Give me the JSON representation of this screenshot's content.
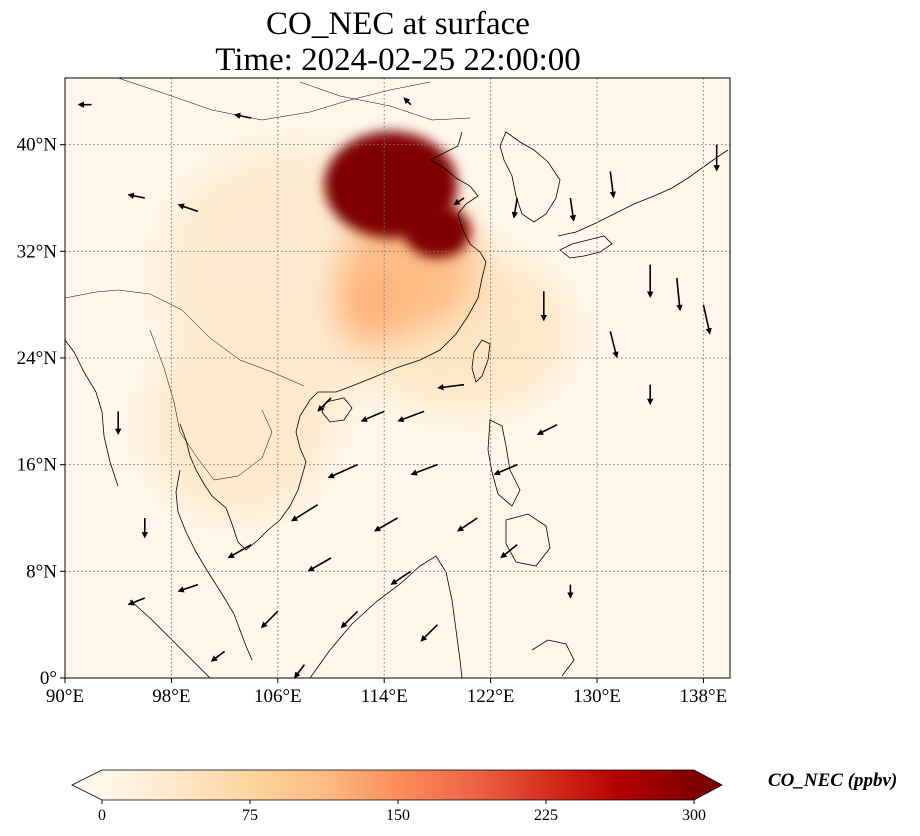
{
  "title": {
    "line1": "CO_NEC at surface",
    "line2": "Time: 2024-02-25 22:00:00"
  },
  "map": {
    "extent": {
      "lon_min": 90,
      "lon_max": 140,
      "lat_min": 0,
      "lat_max": 45
    },
    "lon_ticks": [
      {
        "value": 90,
        "label": "90°E"
      },
      {
        "value": 98,
        "label": "98°E"
      },
      {
        "value": 106,
        "label": "106°E"
      },
      {
        "value": 114,
        "label": "114°E"
      },
      {
        "value": 122,
        "label": "122°E"
      },
      {
        "value": 130,
        "label": "130°E"
      },
      {
        "value": 138,
        "label": "138°E"
      }
    ],
    "lat_ticks": [
      {
        "value": 0,
        "label": "0°"
      },
      {
        "value": 8,
        "label": "8°N"
      },
      {
        "value": 16,
        "label": "16°N"
      },
      {
        "value": 24,
        "label": "24°N"
      },
      {
        "value": 32,
        "label": "32°N"
      },
      {
        "value": 40,
        "label": "40°N"
      }
    ],
    "gridlines": "dotted",
    "concentration_blobs": [
      {
        "lon": 107,
        "lat": 30,
        "rlon": 10,
        "rlat": 10,
        "value": 30
      },
      {
        "lon": 103,
        "lat": 19,
        "rlon": 7,
        "rlat": 7,
        "value": 35
      },
      {
        "lon": 120,
        "lat": 26,
        "rlon": 8,
        "rlat": 6,
        "value": 40
      },
      {
        "lon": 116,
        "lat": 31,
        "rlon": 5,
        "rlat": 5,
        "value": 110
      },
      {
        "lon": 113,
        "lat": 28,
        "rlon": 2.5,
        "rlat": 3,
        "value": 120
      },
      {
        "lon": 114.5,
        "lat": 37,
        "rlon": 5,
        "rlat": 4,
        "value": 300
      },
      {
        "lon": 118,
        "lat": 33.5,
        "rlon": 2.5,
        "rlat": 2,
        "value": 300
      }
    ],
    "wind_vectors": [
      {
        "lon": 92,
        "lat": 43,
        "u": -4,
        "v": 0
      },
      {
        "lon": 104,
        "lat": 42,
        "u": -5,
        "v": 1
      },
      {
        "lon": 96,
        "lat": 36,
        "u": -5,
        "v": 1
      },
      {
        "lon": 100,
        "lat": 35,
        "u": -6,
        "v": 2
      },
      {
        "lon": 94,
        "lat": 20,
        "u": 0,
        "v": -7
      },
      {
        "lon": 96,
        "lat": 12,
        "u": 0,
        "v": -6
      },
      {
        "lon": 116,
        "lat": 43,
        "u": -2,
        "v": 2
      },
      {
        "lon": 120,
        "lat": 36,
        "u": -3,
        "v": -2
      },
      {
        "lon": 124,
        "lat": 36,
        "u": -1,
        "v": -6
      },
      {
        "lon": 126,
        "lat": 29,
        "u": 0,
        "v": -9
      },
      {
        "lon": 128,
        "lat": 36,
        "u": 1,
        "v": -7
      },
      {
        "lon": 131,
        "lat": 38,
        "u": 1,
        "v": -8
      },
      {
        "lon": 134,
        "lat": 31,
        "u": 0,
        "v": -10
      },
      {
        "lon": 136,
        "lat": 30,
        "u": 1,
        "v": -10
      },
      {
        "lon": 138,
        "lat": 28,
        "u": 2,
        "v": -9
      },
      {
        "lon": 139,
        "lat": 40,
        "u": 0,
        "v": -8
      },
      {
        "lon": 131,
        "lat": 26,
        "u": 2,
        "v": -8
      },
      {
        "lon": 134,
        "lat": 22,
        "u": 0,
        "v": -6
      },
      {
        "lon": 120,
        "lat": 22,
        "u": -8,
        "v": -1
      },
      {
        "lon": 117,
        "lat": 20,
        "u": -8,
        "v": -3
      },
      {
        "lon": 114,
        "lat": 20,
        "u": -7,
        "v": -3
      },
      {
        "lon": 110,
        "lat": 21,
        "u": -4,
        "v": -4
      },
      {
        "lon": 112,
        "lat": 16,
        "u": -9,
        "v": -4
      },
      {
        "lon": 118,
        "lat": 16,
        "u": -8,
        "v": -3
      },
      {
        "lon": 124,
        "lat": 16,
        "u": -7,
        "v": -3
      },
      {
        "lon": 127,
        "lat": 19,
        "u": -6,
        "v": -3
      },
      {
        "lon": 109,
        "lat": 13,
        "u": -8,
        "v": -5
      },
      {
        "lon": 115,
        "lat": 12,
        "u": -7,
        "v": -4
      },
      {
        "lon": 121,
        "lat": 12,
        "u": -6,
        "v": -4
      },
      {
        "lon": 104,
        "lat": 10,
        "u": -7,
        "v": -4
      },
      {
        "lon": 110,
        "lat": 9,
        "u": -7,
        "v": -4
      },
      {
        "lon": 116,
        "lat": 8,
        "u": -6,
        "v": -4
      },
      {
        "lon": 100,
        "lat": 7,
        "u": -6,
        "v": -2
      },
      {
        "lon": 106,
        "lat": 5,
        "u": -5,
        "v": -5
      },
      {
        "lon": 112,
        "lat": 5,
        "u": -5,
        "v": -5
      },
      {
        "lon": 118,
        "lat": 4,
        "u": -5,
        "v": -5
      },
      {
        "lon": 96,
        "lat": 6,
        "u": -5,
        "v": -2
      },
      {
        "lon": 102,
        "lat": 2,
        "u": -4,
        "v": -3
      },
      {
        "lon": 108,
        "lat": 1,
        "u": -3,
        "v": -4
      },
      {
        "lon": 124,
        "lat": 10,
        "u": -5,
        "v": -4
      },
      {
        "lon": 128,
        "lat": 7,
        "u": 0,
        "v": -4
      }
    ]
  },
  "colorbar": {
    "label": "CO_NEC (ppbv)",
    "min": 0,
    "max": 300,
    "extend": "both",
    "ticks": [
      {
        "value": 0,
        "label": "0"
      },
      {
        "value": 75,
        "label": "75"
      },
      {
        "value": 150,
        "label": "150"
      },
      {
        "value": 225,
        "label": "225"
      },
      {
        "value": 300,
        "label": "300"
      }
    ],
    "colors": [
      "#fff7ec",
      "#fee8c8",
      "#fdd49e",
      "#fdbb84",
      "#fc8d59",
      "#ef6548",
      "#d7301f",
      "#b30000",
      "#7f0000"
    ],
    "ocean_color": "#fff7ec"
  }
}
